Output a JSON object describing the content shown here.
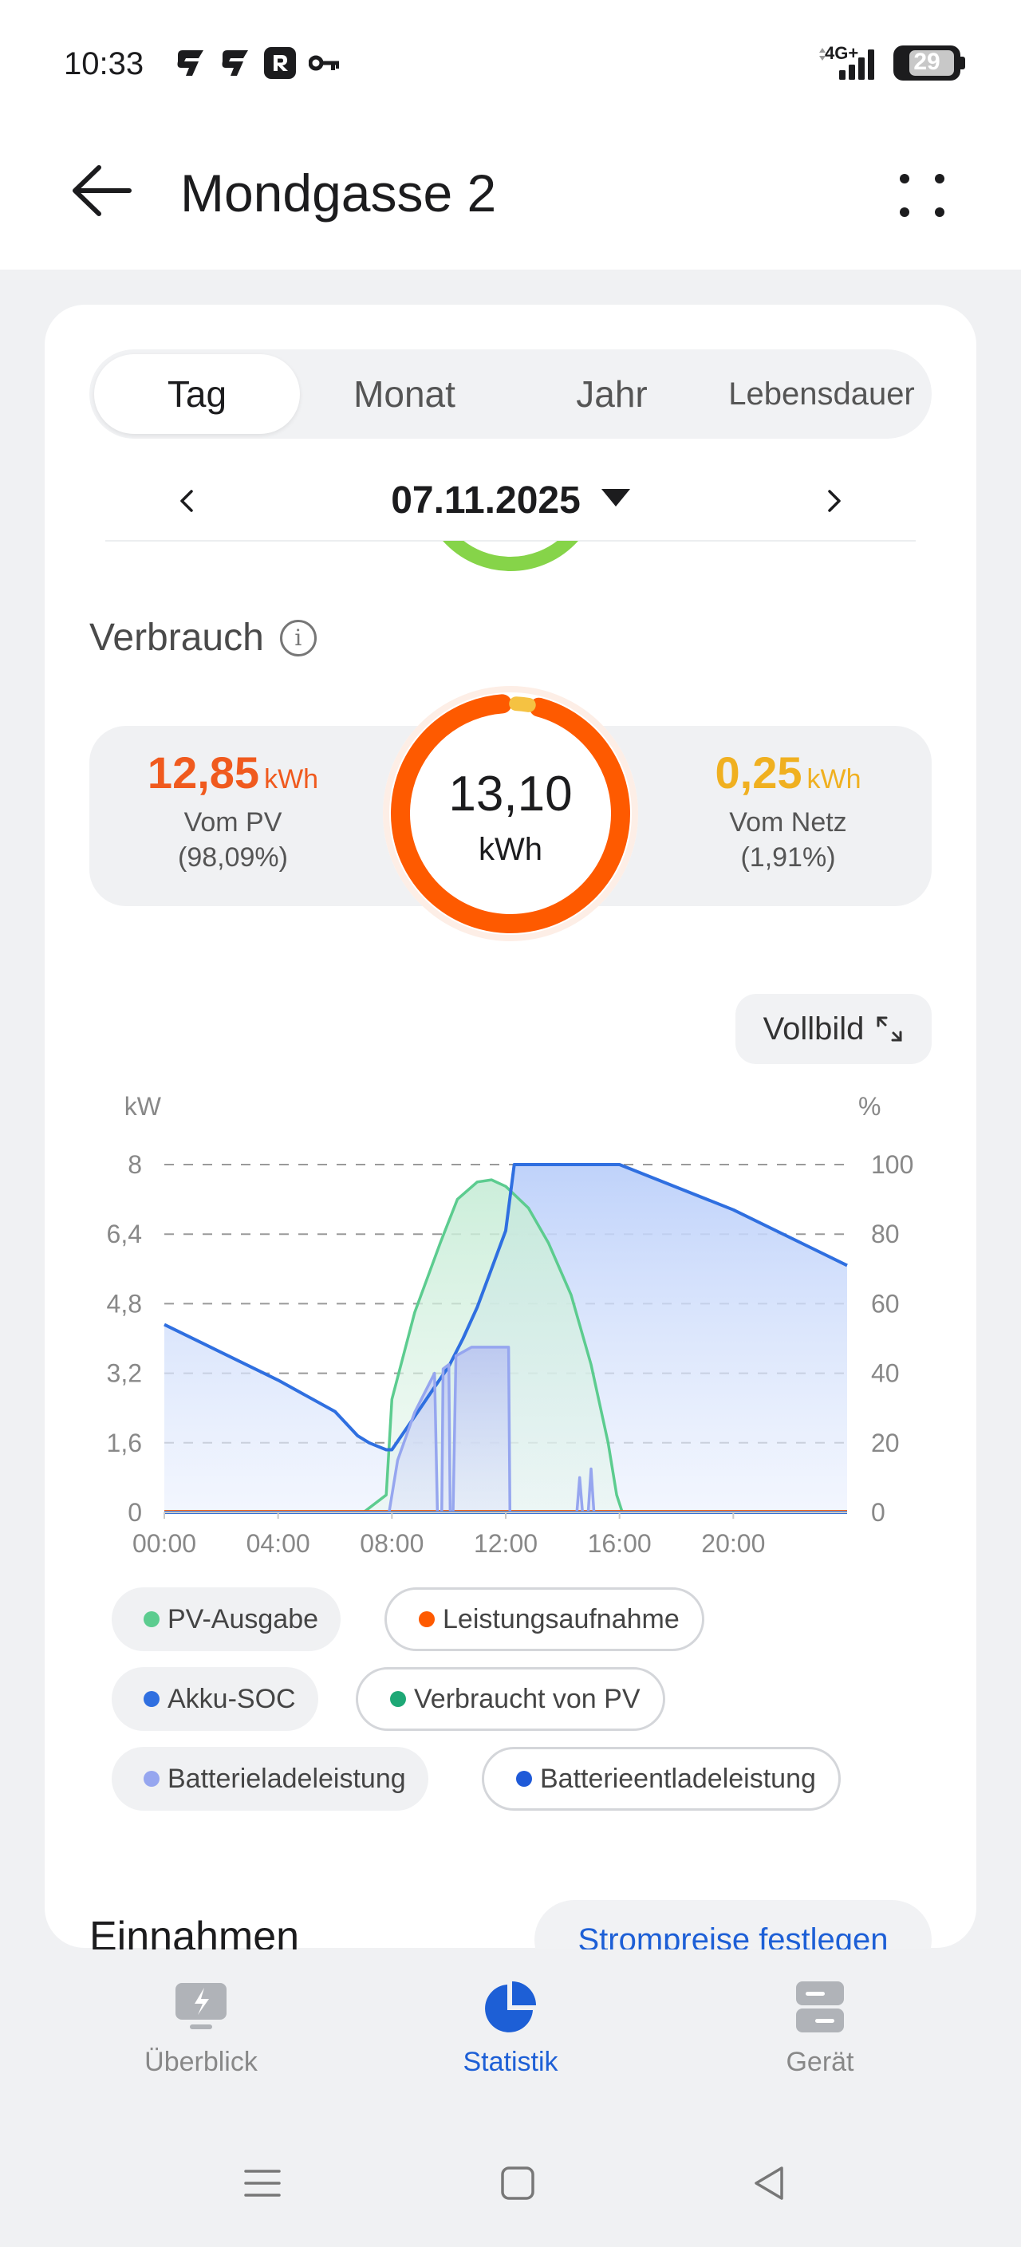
{
  "status_bar": {
    "time": "10:33",
    "network": "4G+",
    "battery": "29",
    "left_icons": [
      "will-icon",
      "will-icon",
      "r-app-icon",
      "key-icon"
    ]
  },
  "header": {
    "title": "Mondgasse 2",
    "back_icon": "arrow-left-icon",
    "more_icon": "more-dots-icon"
  },
  "tabs": [
    {
      "label": "Tag",
      "active": true
    },
    {
      "label": "Monat",
      "active": false
    },
    {
      "label": "Jahr",
      "active": false
    },
    {
      "label": "Lebensdauer",
      "active": false
    }
  ],
  "date_nav": {
    "date": "07.11.2025"
  },
  "consumption": {
    "title": "Verbrauch",
    "total_value": "13,10",
    "total_unit": "kWh",
    "pv": {
      "value": "12,85",
      "unit": "kWh",
      "label": "Vom PV",
      "percent": "(98,09%)"
    },
    "grid": {
      "value": "0,25",
      "unit": "kWh",
      "label": "Vom Netz",
      "percent": "(1,91%)"
    },
    "ring_fraction_pv": 0.9809,
    "colors": {
      "pv": "#f05a1e",
      "grid": "#f5c242",
      "ring": "#fe5a00"
    }
  },
  "fullscreen_label": "Vollbild",
  "chart_data": {
    "type": "area",
    "left_axis_label": "kW",
    "right_axis_label": "%",
    "x_ticks": [
      "00:00",
      "04:00",
      "08:00",
      "12:00",
      "16:00",
      "20:00"
    ],
    "x_domain_hours": [
      0,
      24
    ],
    "y_left_ticks": [
      "0",
      "1,6",
      "3,2",
      "4,8",
      "6,4",
      "8"
    ],
    "y_left_range": [
      0,
      8
    ],
    "y_right_ticks": [
      "0",
      "20",
      "40",
      "60",
      "80",
      "100"
    ],
    "y_right_range": [
      0,
      100
    ],
    "grid": true,
    "series": [
      {
        "name": "PV-Ausgabe",
        "axis": "left",
        "color": "#5ccc8f",
        "points": [
          [
            0,
            0
          ],
          [
            7,
            0
          ],
          [
            7.8,
            0.4
          ],
          [
            8,
            2.6
          ],
          [
            8.8,
            4.6
          ],
          [
            9.7,
            6.2
          ],
          [
            10.3,
            7.2
          ],
          [
            11,
            7.6
          ],
          [
            11.5,
            7.65
          ],
          [
            12,
            7.5
          ],
          [
            12.8,
            7.0
          ],
          [
            13.5,
            6.2
          ],
          [
            14.3,
            5.0
          ],
          [
            15,
            3.4
          ],
          [
            15.6,
            1.6
          ],
          [
            15.9,
            0.4
          ],
          [
            16.1,
            0
          ],
          [
            24,
            0
          ]
        ]
      },
      {
        "name": "Leistungsaufnahme",
        "axis": "left",
        "color": "#fe5a00",
        "points": [
          [
            0,
            0.02
          ],
          [
            24,
            0.02
          ]
        ]
      },
      {
        "name": "Akku-SOC",
        "axis": "right",
        "color": "#2f6fe0",
        "points": [
          [
            0,
            54
          ],
          [
            2,
            46
          ],
          [
            4,
            38
          ],
          [
            6,
            29
          ],
          [
            6.8,
            22
          ],
          [
            7.2,
            20
          ],
          [
            7.5,
            19
          ],
          [
            7.8,
            18
          ],
          [
            8,
            18
          ],
          [
            8.5,
            24
          ],
          [
            9,
            30
          ],
          [
            9.5,
            36
          ],
          [
            10,
            42
          ],
          [
            10.5,
            50
          ],
          [
            11,
            59
          ],
          [
            11.5,
            70
          ],
          [
            12,
            81
          ],
          [
            12.3,
            100
          ],
          [
            16,
            100
          ],
          [
            20,
            87
          ],
          [
            24,
            71
          ]
        ]
      },
      {
        "name": "Verbraucht von PV",
        "axis": "left",
        "color": "#1ea876",
        "points": [
          [
            0,
            0
          ],
          [
            24,
            0
          ]
        ]
      },
      {
        "name": "Batterieladeleistung",
        "axis": "left",
        "color": "#96a6ef",
        "points": [
          [
            0,
            0
          ],
          [
            7.9,
            0
          ],
          [
            8.2,
            1.2
          ],
          [
            8.8,
            2.3
          ],
          [
            9.5,
            3.2
          ],
          [
            9.6,
            0
          ],
          [
            9.75,
            0
          ],
          [
            9.8,
            3.3
          ],
          [
            10,
            3.4
          ],
          [
            10.05,
            0
          ],
          [
            10.15,
            0
          ],
          [
            10.25,
            3.6
          ],
          [
            10.8,
            3.8
          ],
          [
            12.1,
            3.8
          ],
          [
            12.15,
            0
          ],
          [
            14.5,
            0
          ],
          [
            14.6,
            0.8
          ],
          [
            14.7,
            0
          ],
          [
            14.9,
            0
          ],
          [
            15,
            1.0
          ],
          [
            15.1,
            0
          ],
          [
            24,
            0
          ]
        ]
      },
      {
        "name": "Batterieentladeleistung",
        "axis": "left",
        "color": "#1f5ad8",
        "points": [
          [
            0,
            0
          ],
          [
            24,
            0
          ]
        ]
      }
    ]
  },
  "legend": [
    {
      "label": "PV-Ausgabe",
      "color": "#5ccc8f",
      "style": "filled"
    },
    {
      "label": "Leistungsaufnahme",
      "color": "#fe5a00",
      "style": "outline"
    },
    {
      "label": "Akku-SOC",
      "color": "#2f6fe0",
      "style": "filled"
    },
    {
      "label": "Verbraucht von PV",
      "color": "#1ea876",
      "style": "outline"
    },
    {
      "label": "Batterieladeleistung",
      "color": "#96a6ef",
      "style": "filled"
    },
    {
      "label": "Batterieentladeleistung",
      "color": "#1f5ad8",
      "style": "outline"
    }
  ],
  "income": {
    "title": "Einnahmen",
    "button": "Strompreise festlegen"
  },
  "bottom_nav": [
    {
      "label": "Überblick",
      "icon": "overview-icon",
      "active": false
    },
    {
      "label": "Statistik",
      "icon": "pie-chart-icon",
      "active": true
    },
    {
      "label": "Gerät",
      "icon": "device-icon",
      "active": false
    }
  ],
  "system_nav": [
    "menu-icon",
    "home-icon",
    "back-triangle-icon"
  ]
}
